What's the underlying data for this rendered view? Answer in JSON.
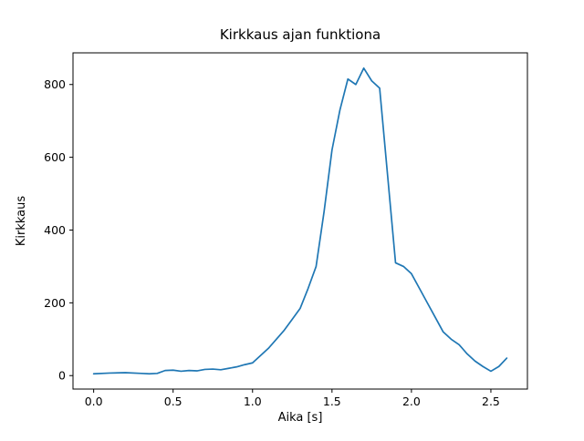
{
  "chart_data": {
    "type": "line",
    "title": "Kirkkaus ajan funktiona",
    "xlabel": "Aika [s]",
    "ylabel": "Kirkkaus",
    "series": [
      {
        "name": "kirkkaus",
        "x": [
          0.0,
          0.1,
          0.2,
          0.3,
          0.35,
          0.4,
          0.45,
          0.5,
          0.55,
          0.6,
          0.65,
          0.7,
          0.75,
          0.8,
          0.85,
          0.9,
          0.95,
          1.0,
          1.05,
          1.1,
          1.15,
          1.2,
          1.25,
          1.3,
          1.35,
          1.4,
          1.45,
          1.5,
          1.55,
          1.6,
          1.65,
          1.7,
          1.75,
          1.8,
          1.85,
          1.9,
          1.95,
          2.0,
          2.05,
          2.1,
          2.15,
          2.2,
          2.25,
          2.3,
          2.35,
          2.4,
          2.45,
          2.5,
          2.55,
          2.6
        ],
        "y": [
          5,
          7,
          8,
          6,
          5,
          6,
          14,
          15,
          12,
          14,
          13,
          17,
          18,
          16,
          20,
          24,
          30,
          35,
          55,
          75,
          100,
          125,
          155,
          185,
          240,
          300,
          450,
          620,
          730,
          815,
          800,
          845,
          810,
          790,
          550,
          310,
          300,
          280,
          240,
          200,
          160,
          120,
          100,
          85,
          60,
          40,
          25,
          12,
          25,
          48
        ]
      }
    ],
    "xlim": [
      -0.13,
      2.73
    ],
    "ylim": [
      -37,
      887
    ],
    "xticks": [
      0.0,
      0.5,
      1.0,
      1.5,
      2.0,
      2.5
    ],
    "yticks": [
      0,
      200,
      400,
      600,
      800
    ],
    "line_color": "#1f77b4",
    "axis_color": "#000000",
    "grid": false,
    "legend_position": "none"
  }
}
